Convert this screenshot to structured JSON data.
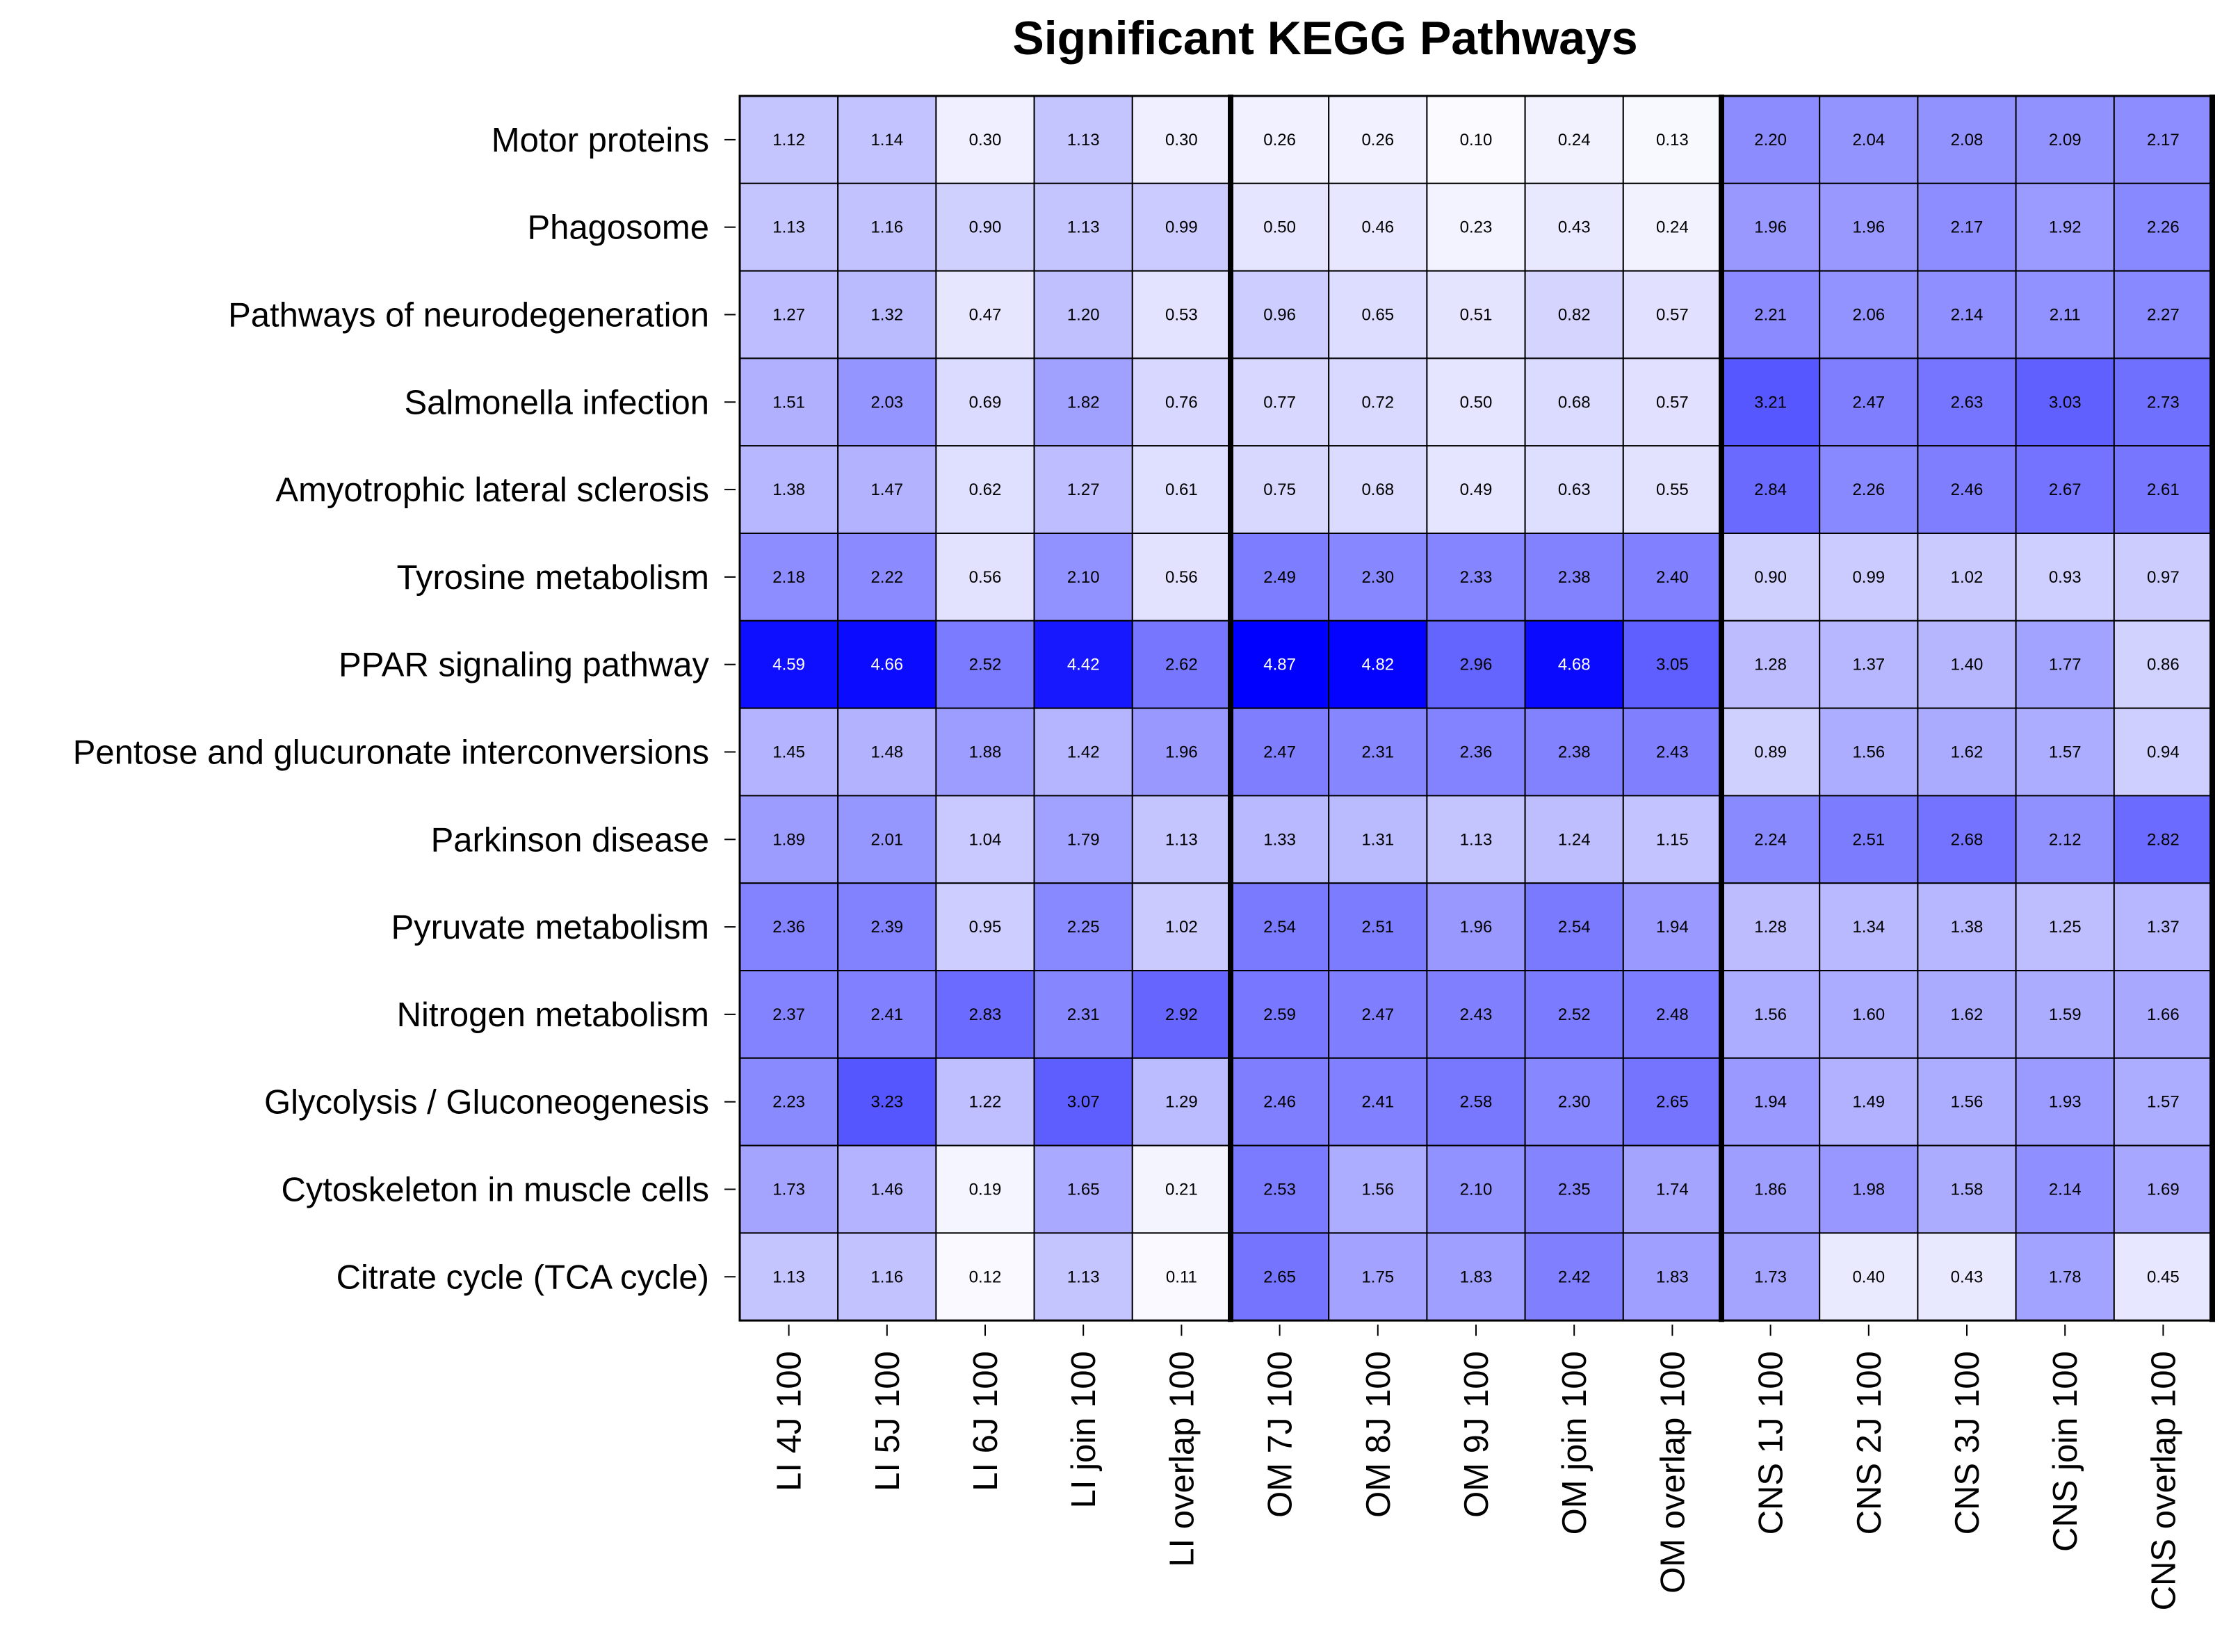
{
  "chart_data": {
    "type": "heatmap",
    "title": "Significant KEGG Pathways",
    "colors": {
      "low": "#ffffff",
      "high": "#0000ff",
      "text_dark": "#000000",
      "text_light": "#ffffff"
    },
    "value_range": [
      0,
      4.87
    ],
    "group_separators_after_column": [
      5,
      10
    ],
    "rows": [
      "Motor proteins",
      "Phagosome",
      "Pathways of neurodegeneration",
      "Salmonella infection",
      "Amyotrophic lateral sclerosis",
      "Tyrosine metabolism",
      "PPAR signaling pathway",
      "Pentose and glucuronate interconversions",
      "Parkinson disease",
      "Pyruvate metabolism",
      "Nitrogen metabolism",
      "Glycolysis / Gluconeogenesis",
      "Cytoskeleton in muscle cells",
      "Citrate cycle (TCA cycle)"
    ],
    "columns": [
      "LI 4J 100",
      "LI 5J 100",
      "LI 6J 100",
      "LI join 100",
      "LI overlap 100",
      "OM 7J 100",
      "OM 8J 100",
      "OM 9J 100",
      "OM join 100",
      "OM overlap 100",
      "CNS 1J 100",
      "CNS 2J 100",
      "CNS 3J 100",
      "CNS join 100",
      "CNS overlap 100"
    ],
    "values": [
      [
        "1.12",
        "1.14",
        "0.30",
        "1.13",
        "0.30",
        "0.26",
        "0.26",
        "0.10",
        "0.24",
        "0.13",
        "2.20",
        "2.04",
        "2.08",
        "2.09",
        "2.17"
      ],
      [
        "1.13",
        "1.16",
        "0.90",
        "1.13",
        "0.99",
        "0.50",
        "0.46",
        "0.23",
        "0.43",
        "0.24",
        "1.96",
        "1.96",
        "2.17",
        "1.92",
        "2.26"
      ],
      [
        "1.27",
        "1.32",
        "0.47",
        "1.20",
        "0.53",
        "0.96",
        "0.65",
        "0.51",
        "0.82",
        "0.57",
        "2.21",
        "2.06",
        "2.14",
        "2.11",
        "2.27"
      ],
      [
        "1.51",
        "2.03",
        "0.69",
        "1.82",
        "0.76",
        "0.77",
        "0.72",
        "0.50",
        "0.68",
        "0.57",
        "3.21",
        "2.47",
        "2.63",
        "3.03",
        "2.73"
      ],
      [
        "1.38",
        "1.47",
        "0.62",
        "1.27",
        "0.61",
        "0.75",
        "0.68",
        "0.49",
        "0.63",
        "0.55",
        "2.84",
        "2.26",
        "2.46",
        "2.67",
        "2.61"
      ],
      [
        "2.18",
        "2.22",
        "0.56",
        "2.10",
        "0.56",
        "2.49",
        "2.30",
        "2.33",
        "2.38",
        "2.40",
        "0.90",
        "0.99",
        "1.02",
        "0.93",
        "0.97"
      ],
      [
        "4.59",
        "4.66",
        "2.52",
        "4.42",
        "2.62",
        "4.87",
        "4.82",
        "2.96",
        "4.68",
        "3.05",
        "1.28",
        "1.37",
        "1.40",
        "1.77",
        "0.86"
      ],
      [
        "1.45",
        "1.48",
        "1.88",
        "1.42",
        "1.96",
        "2.47",
        "2.31",
        "2.36",
        "2.38",
        "2.43",
        "0.89",
        "1.56",
        "1.62",
        "1.57",
        "0.94"
      ],
      [
        "1.89",
        "2.01",
        "1.04",
        "1.79",
        "1.13",
        "1.33",
        "1.31",
        "1.13",
        "1.24",
        "1.15",
        "2.24",
        "2.51",
        "2.68",
        "2.12",
        "2.82"
      ],
      [
        "2.36",
        "2.39",
        "0.95",
        "2.25",
        "1.02",
        "2.54",
        "2.51",
        "1.96",
        "2.54",
        "1.94",
        "1.28",
        "1.34",
        "1.38",
        "1.25",
        "1.37"
      ],
      [
        "2.37",
        "2.41",
        "2.83",
        "2.31",
        "2.92",
        "2.59",
        "2.47",
        "2.43",
        "2.52",
        "2.48",
        "1.56",
        "1.60",
        "1.62",
        "1.59",
        "1.66"
      ],
      [
        "2.23",
        "3.23",
        "1.22",
        "3.07",
        "1.29",
        "2.46",
        "2.41",
        "2.58",
        "2.30",
        "2.65",
        "1.94",
        "1.49",
        "1.56",
        "1.93",
        "1.57"
      ],
      [
        "1.73",
        "1.46",
        "0.19",
        "1.65",
        "0.21",
        "2.53",
        "1.56",
        "2.10",
        "2.35",
        "1.74",
        "1.86",
        "1.98",
        "1.58",
        "2.14",
        "1.69"
      ],
      [
        "1.13",
        "1.16",
        "0.12",
        "1.13",
        "0.11",
        "2.65",
        "1.75",
        "1.83",
        "2.42",
        "1.83",
        "1.73",
        "0.40",
        "0.43",
        "1.78",
        "0.45"
      ]
    ]
  }
}
